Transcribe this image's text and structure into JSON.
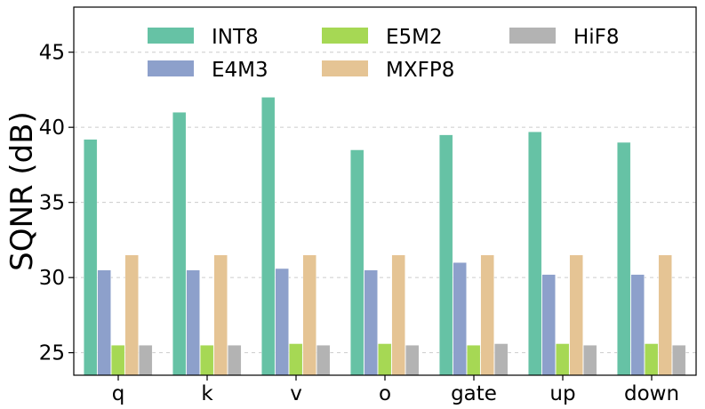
{
  "chart_data": {
    "type": "bar",
    "title": "",
    "xlabel": "",
    "ylabel": "SQNR (dB)",
    "ylim": [
      23.5,
      48
    ],
    "yticks": [
      25,
      30,
      35,
      40,
      45
    ],
    "grid": true,
    "legend_position": "top",
    "categories": [
      "q",
      "k",
      "v",
      "o",
      "gate",
      "up",
      "down"
    ],
    "series": [
      {
        "name": "INT8",
        "color": "#66c2a5",
        "values": [
          39.2,
          41.0,
          42.0,
          38.5,
          39.5,
          39.7,
          39.0
        ]
      },
      {
        "name": "E4M3",
        "color": "#8da0cb",
        "values": [
          30.5,
          30.5,
          30.6,
          30.5,
          31.0,
          30.2,
          30.2
        ]
      },
      {
        "name": "E5M2",
        "color": "#a6d854",
        "values": [
          25.5,
          25.5,
          25.6,
          25.6,
          25.5,
          25.6,
          25.6
        ]
      },
      {
        "name": "MXFP8",
        "color": "#e5c494",
        "values": [
          31.5,
          31.5,
          31.5,
          31.5,
          31.5,
          31.5,
          31.5
        ]
      },
      {
        "name": "HiF8",
        "color": "#b3b3b3",
        "values": [
          25.5,
          25.5,
          25.5,
          25.5,
          25.6,
          25.5,
          25.5
        ]
      }
    ],
    "legend_order": [
      "INT8",
      "E5M2",
      "HiF8",
      "E4M3",
      "MXFP8"
    ]
  }
}
